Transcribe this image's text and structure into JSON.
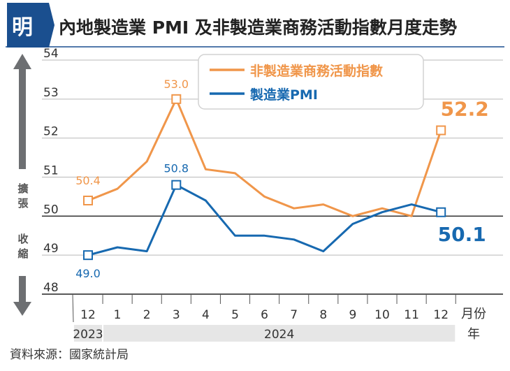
{
  "header": {
    "logo_char": "明",
    "title": "內地製造業 PMI 及非製造業商務活動指數月度走勢"
  },
  "colors": {
    "orange": "#f0964a",
    "blue": "#1769b0",
    "title_bar": "#1a4f8f",
    "grid": "#b9b9b9",
    "arrow": "#6d6f72",
    "year_band": "#e6e6e6",
    "text": "#333333"
  },
  "chart_data": {
    "type": "line",
    "title": "內地製造業 PMI 及非製造業商務活動指數月度走勢",
    "categories": [
      "12",
      "1",
      "2",
      "3",
      "4",
      "5",
      "6",
      "7",
      "8",
      "9",
      "10",
      "11",
      "12"
    ],
    "x_unit_label": "月份",
    "years": [
      {
        "label": "2023",
        "start": 0,
        "end": 0
      },
      {
        "label": "2024",
        "start": 1,
        "end": 12
      }
    ],
    "year_unit_label": "年",
    "ylim": [
      48,
      54
    ],
    "yticks": [
      48,
      49,
      50,
      51,
      52,
      53,
      54
    ],
    "baseline": 50,
    "expansion_label": "擴張",
    "contraction_label": "收縮",
    "legend_position": "top-right",
    "grid": true,
    "series": [
      {
        "name": "非製造業商務活動指數",
        "color": "#f0964a",
        "values": [
          50.4,
          50.7,
          51.4,
          53.0,
          51.2,
          51.1,
          50.5,
          50.2,
          50.3,
          50.0,
          50.2,
          50.0,
          52.2
        ],
        "labels": [
          {
            "index": 0,
            "text": "50.4"
          },
          {
            "index": 3,
            "text": "53.0"
          },
          {
            "index": 12,
            "text": "52.2"
          }
        ],
        "markers": [
          0,
          3,
          12
        ]
      },
      {
        "name": "製造業PMI",
        "color": "#1769b0",
        "values": [
          49.0,
          49.2,
          49.1,
          50.8,
          50.4,
          49.5,
          49.5,
          49.4,
          49.1,
          49.8,
          50.1,
          50.3,
          50.1
        ],
        "labels": [
          {
            "index": 0,
            "text": "49.0"
          },
          {
            "index": 3,
            "text": "50.8"
          },
          {
            "index": 12,
            "text": "50.1"
          }
        ],
        "markers": [
          0,
          3,
          12
        ]
      }
    ]
  },
  "source": "資料來源：國家統計局"
}
